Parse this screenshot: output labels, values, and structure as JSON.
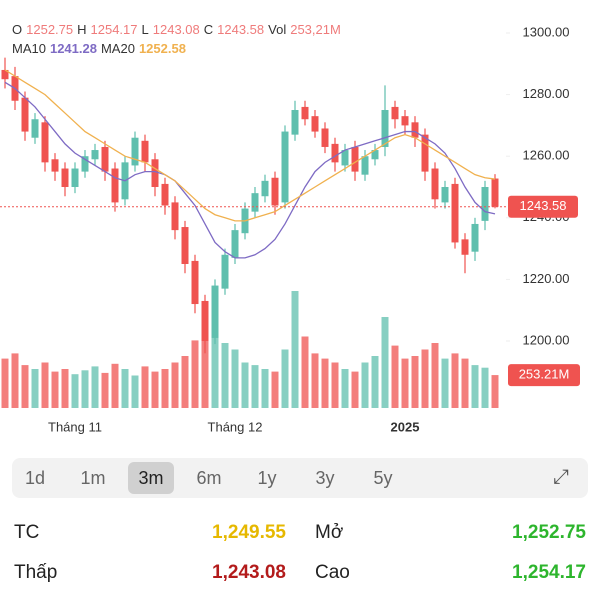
{
  "chart_data": {
    "type": "candlestick",
    "header": {
      "o": "O",
      "h": "H",
      "l": "L",
      "c": "C",
      "vol": "Vol",
      "vol_label": "253,21M",
      "ma10": "MA10",
      "ma20": "MA20"
    },
    "categories": [
      null,
      null,
      null,
      null,
      null,
      null,
      null,
      "Tháng 11",
      null,
      null,
      null,
      null,
      null,
      null,
      null,
      null,
      null,
      null,
      null,
      null,
      null,
      null,
      null,
      "Tháng 12",
      null,
      null,
      null,
      null,
      null,
      null,
      null,
      null,
      null,
      null,
      null,
      null,
      null,
      null,
      null,
      null,
      "2025",
      null,
      null,
      null,
      null,
      null,
      null,
      null,
      null,
      null
    ],
    "open": [
      1288,
      1286,
      1279,
      1266,
      1271,
      1259,
      1256,
      1250,
      1255,
      1259,
      1263,
      1256,
      1246,
      1257,
      1265,
      1259,
      1251,
      1245,
      1237,
      1226,
      1213,
      1201,
      1217,
      1227,
      1235,
      1242,
      1247,
      1253,
      1245,
      1267,
      1276,
      1273,
      1269,
      1264,
      1257,
      1263,
      1254,
      1259,
      1263,
      1276,
      1273,
      1271,
      1267,
      1256,
      1245,
      1251,
      1233,
      1229,
      1239,
      1252.75
    ],
    "high": [
      1292,
      1289,
      1281,
      1274,
      1273,
      1261,
      1258,
      1258,
      1262,
      1264,
      1265,
      1258,
      1260,
      1268,
      1267,
      1261,
      1253,
      1247,
      1239,
      1228,
      1215,
      1220,
      1230,
      1238,
      1245,
      1250,
      1254,
      1255,
      1270,
      1278,
      1278,
      1275,
      1271,
      1266,
      1264,
      1265,
      1262,
      1264,
      1283,
      1278,
      1275,
      1273,
      1269,
      1258,
      1252,
      1253,
      1235,
      1240,
      1252,
      1254.17
    ],
    "low": [
      1282,
      1275,
      1265,
      1264,
      1255,
      1252,
      1247,
      1248,
      1253,
      1257,
      1252,
      1242,
      1244,
      1255,
      1255,
      1247,
      1241,
      1233,
      1222,
      1209,
      1196,
      1199,
      1215,
      1225,
      1233,
      1240,
      1245,
      1241,
      1243,
      1265,
      1270,
      1266,
      1261,
      1255,
      1255,
      1252,
      1252,
      1257,
      1260,
      1269,
      1267,
      1263,
      1252,
      1243,
      1243,
      1230,
      1222,
      1226,
      1236,
      1243.08
    ],
    "close": [
      1285,
      1278,
      1268,
      1272,
      1258,
      1255,
      1250,
      1256,
      1260,
      1262,
      1255,
      1245,
      1258,
      1266,
      1258,
      1250,
      1244,
      1236,
      1225,
      1212,
      1200,
      1218,
      1228,
      1236,
      1243,
      1248,
      1252,
      1244,
      1268,
      1275,
      1272,
      1268,
      1263,
      1258,
      1262,
      1255,
      1260,
      1262,
      1275,
      1272,
      1270,
      1266,
      1255,
      1246,
      1250,
      1232,
      1228,
      1238,
      1250,
      1243.58
    ],
    "volume": [
      380,
      420,
      330,
      300,
      350,
      280,
      300,
      260,
      290,
      320,
      270,
      340,
      300,
      250,
      320,
      280,
      300,
      350,
      400,
      520,
      750,
      880,
      500,
      450,
      350,
      330,
      300,
      280,
      450,
      900,
      550,
      420,
      380,
      350,
      300,
      280,
      350,
      400,
      700,
      480,
      380,
      400,
      450,
      500,
      380,
      420,
      380,
      330,
      310,
      253.21
    ],
    "volume_label": "253.21M",
    "ma10": [
      1284,
      1282,
      1279,
      1276,
      1272,
      1268,
      1264,
      1261,
      1259,
      1257,
      1255,
      1253,
      1252,
      1254,
      1255,
      1255,
      1254,
      1252,
      1248,
      1244,
      1238,
      1232,
      1229,
      1227,
      1227,
      1228,
      1230,
      1233,
      1238,
      1244,
      1250,
      1255,
      1258,
      1260,
      1262,
      1263,
      1264,
      1265,
      1266,
      1267,
      1268,
      1268,
      1266,
      1264,
      1261,
      1256,
      1250,
      1245,
      1242,
      1241.28
    ],
    "ma20": [
      1288,
      1286,
      1284,
      1282,
      1280,
      1277,
      1274,
      1271,
      1268,
      1266,
      1264,
      1262,
      1260,
      1259,
      1258,
      1256,
      1254,
      1252,
      1249,
      1246,
      1243,
      1241,
      1240,
      1239,
      1239,
      1240,
      1241,
      1242,
      1244,
      1246,
      1248,
      1250,
      1252,
      1254,
      1256,
      1258,
      1260,
      1262,
      1264,
      1266,
      1267,
      1266,
      1264,
      1262,
      1260,
      1258,
      1256,
      1254,
      1253,
      1252.58
    ],
    "colors": {
      "up": "#5fbfae",
      "down": "#ef5350",
      "ma10": "#7e6bc4",
      "ma20": "#f0b14f"
    },
    "ylim": [
      1190,
      1310
    ],
    "yticks": [
      {
        "value": 1200,
        "label": "1200.00"
      },
      {
        "value": 1220,
        "label": "1220.00"
      },
      {
        "value": 1240,
        "label": "1240.00"
      },
      {
        "value": 1260,
        "label": "1260.00"
      },
      {
        "value": 1280,
        "label": "1280.00"
      },
      {
        "value": 1300,
        "label": "1300.00"
      }
    ],
    "vlim": [
      0,
      1000
    ]
  },
  "ranges": {
    "items": [
      "1d",
      "1m",
      "3m",
      "6m",
      "1y",
      "3y",
      "5y"
    ],
    "selected": "3m"
  },
  "stats": [
    {
      "label": "TC",
      "value": "1,249.55",
      "color": "#e6b800"
    },
    {
      "label": "Mở",
      "value": "1,252.75",
      "color": "#2db52d"
    },
    {
      "label": "Thấp",
      "value": "1,243.08",
      "color": "#b31b1b"
    },
    {
      "label": "Cao",
      "value": "1,254.17",
      "color": "#2db52d"
    }
  ]
}
